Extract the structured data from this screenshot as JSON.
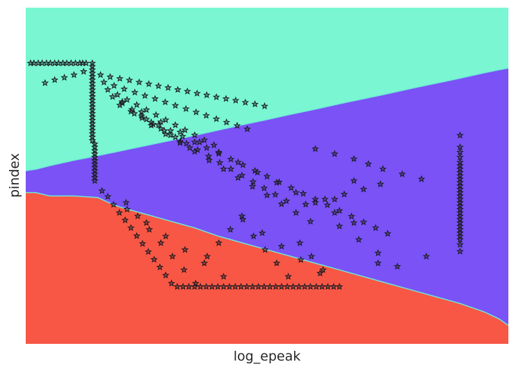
{
  "chart_data": {
    "type": "scatter",
    "title": "",
    "xlabel": "log_epeak",
    "ylabel": "pindex",
    "xlim": [
      0,
      100
    ],
    "ylim": [
      0,
      100
    ],
    "x_ticks_shown": false,
    "y_ticks_shown": false,
    "grid": false,
    "legend": "none",
    "marker": "star",
    "marker_face_color": "#2a2a4a",
    "marker_edge_color": "#1a1a1a",
    "regions": [
      {
        "class_index": 0,
        "color": "#7af7d2",
        "position": "top"
      },
      {
        "class_index": 1,
        "color": "#7a52f6",
        "position": "middle"
      },
      {
        "class_index": 2,
        "color": "#f85746",
        "position": "bottom"
      }
    ],
    "boundary_line_color": "#6ee8d6",
    "boundaries": [
      {
        "between": "top-middle",
        "x": [
          0,
          2,
          5,
          10,
          15,
          20,
          25,
          30,
          35,
          40,
          45,
          50,
          55,
          60,
          65,
          70,
          75,
          80,
          85,
          90,
          95,
          98,
          100
        ],
        "y": [
          51.5,
          51.9,
          53.0,
          54.6,
          56.0,
          57.5,
          59.0,
          60.5,
          62.0,
          63.6,
          65.2,
          66.7,
          68.3,
          69.8,
          71.4,
          72.9,
          74.4,
          76.0,
          77.5,
          79.0,
          80.6,
          81.5,
          82.0
        ]
      },
      {
        "between": "middle-bottom",
        "x": [
          0,
          2,
          5,
          10,
          15,
          18,
          20,
          25,
          30,
          35,
          40,
          45,
          50,
          55,
          60,
          65,
          70,
          75,
          80,
          85,
          90,
          95,
          98,
          100
        ],
        "y": [
          45.0,
          45.0,
          44.0,
          44.0,
          43.5,
          41.5,
          40.5,
          38.5,
          36.5,
          34.5,
          32.0,
          30.0,
          28.0,
          26.0,
          24.0,
          22.0,
          20.0,
          18.0,
          16.0,
          14.0,
          12.0,
          9.5,
          7.5,
          5.5
        ]
      }
    ],
    "series": [
      {
        "points_x": [
          13.8,
          13.8,
          13.8,
          13.8,
          13.8,
          13.8,
          13.8,
          13.8,
          13.8,
          13.8,
          13.8,
          13.8,
          13.8,
          13.8,
          13.8,
          13.8,
          13.8,
          13.8,
          13.8,
          13.8,
          13.8,
          13.8,
          13.8,
          13.8,
          14.3,
          14.3,
          14.3,
          14.3,
          14.3,
          14.3,
          14.3,
          14.3,
          14.3,
          14.3,
          14.3,
          14.3,
          12.5,
          11.8,
          11.2,
          10.3,
          9.4,
          8.5,
          7.7,
          6.8,
          6.0,
          5.1,
          4.3,
          3.4,
          2.6,
          1.7,
          1.0,
          12.0,
          10.0,
          8.0,
          6.0,
          4.0,
          15.5,
          17.5,
          19.5,
          21.5,
          23.5,
          25.5,
          27.5,
          29.5,
          31.5,
          33.5,
          35.5,
          37.5,
          39.5,
          41.5,
          43.5,
          45.5,
          47.5,
          49.5,
          16.2,
          18.3,
          20.4,
          22.6,
          24.7,
          26.8,
          28.9,
          31.0,
          33.2,
          35.3,
          37.4,
          39.5,
          41.6,
          43.8,
          45.9,
          17.0,
          19.0,
          21.0,
          23.0,
          25.0,
          27.0,
          29.0,
          31.0,
          33.0,
          35.0,
          37.0,
          39.0,
          18.0,
          20.0,
          22.0,
          24.0,
          26.0,
          28.0,
          30.0,
          32.0,
          34.0,
          19.5,
          21.8,
          24.1,
          26.4,
          28.7,
          31.0,
          33.3,
          35.6,
          37.9,
          40.2,
          42.5,
          44.8,
          47.1,
          49.4,
          51.7,
          54.0,
          22.5,
          25.0,
          27.5,
          30.0,
          32.5,
          35.0,
          37.5,
          40.0,
          42.5,
          45.0,
          47.5,
          50.0,
          52.5,
          55.0,
          57.5,
          60.0,
          62.5,
          65.0,
          67.5,
          70.0,
          72.5,
          75.0,
          26.0,
          29.0,
          32.0,
          35.0,
          38.0,
          41.0,
          44.0,
          47.0,
          50.0,
          53.0,
          56.0,
          59.0,
          20.0,
          24.0,
          28.0,
          32.0,
          36.0,
          40.0,
          44.0,
          48.0,
          52.0,
          56.0,
          60.0,
          64.0,
          68.0,
          15.8,
          17.0,
          18.2,
          19.4,
          20.6,
          21.8,
          23.0,
          24.2,
          25.4,
          26.6,
          27.8,
          29.0,
          30.2,
          31.4,
          32.6,
          33.8,
          35.0,
          36.2,
          37.4,
          38.6,
          39.8,
          41.0,
          42.2,
          43.4,
          44.6,
          45.8,
          47.0,
          48.2,
          49.4,
          50.6,
          51.8,
          53.0,
          54.2,
          55.4,
          56.6,
          57.8,
          59.0,
          60.2,
          61.4,
          62.6,
          63.8,
          65.0,
          20.8,
          23.2,
          25.6,
          28.0,
          30.4,
          32.8,
          35.2,
          37.6,
          40.0,
          42.4,
          44.8,
          47.2,
          49.6,
          52.0,
          54.4,
          56.8,
          59.2,
          61.6,
          21.0,
          25.0,
          29.0,
          33.0,
          37.0,
          41.0,
          45.0,
          49.0,
          53.0,
          57.0,
          61.0,
          65.0,
          69.0,
          73.0,
          77.0,
          60.0,
          64.0,
          68.0,
          71.0,
          74.0,
          78.0,
          82.0,
          73.5,
          70.0,
          66.0,
          62.0,
          58.0
        ],
        "points_y": [
          83.5,
          82.5,
          81.5,
          80.5,
          79.5,
          78.5,
          77.5,
          76.5,
          75.5,
          74.5,
          73.5,
          72.5,
          71.5,
          70.5,
          69.5,
          68.5,
          67.5,
          66.5,
          65.5,
          64.5,
          63.5,
          62.5,
          61.5,
          60.5,
          59.5,
          58.5,
          57.5,
          56.5,
          55.5,
          54.5,
          53.5,
          52.5,
          51.5,
          50.5,
          49.5,
          48.5,
          83.5,
          83.5,
          83.5,
          83.5,
          83.5,
          83.5,
          83.5,
          83.5,
          83.5,
          83.5,
          83.5,
          83.5,
          83.5,
          83.5,
          83.5,
          81.0,
          80.0,
          79.2,
          78.5,
          77.6,
          80.0,
          79.4,
          78.9,
          78.4,
          77.8,
          77.3,
          76.7,
          76.2,
          75.6,
          75.1,
          74.5,
          74.0,
          73.4,
          72.9,
          72.4,
          71.8,
          71.3,
          70.7,
          77.8,
          76.8,
          75.8,
          74.8,
          73.8,
          72.9,
          71.9,
          70.9,
          69.9,
          68.9,
          67.9,
          66.9,
          65.9,
          64.9,
          63.9,
          75.6,
          74.1,
          72.6,
          71.1,
          69.6,
          68.1,
          66.6,
          65.1,
          63.6,
          62.1,
          60.6,
          59.1,
          73.5,
          71.6,
          69.7,
          67.8,
          65.9,
          64.0,
          62.1,
          60.2,
          58.3,
          71.0,
          69.1,
          67.2,
          65.3,
          63.4,
          61.5,
          59.6,
          57.7,
          55.8,
          53.9,
          52.0,
          50.1,
          48.2,
          46.3,
          44.4,
          42.5,
          68.5,
          66.8,
          65.1,
          63.4,
          61.7,
          60.0,
          58.3,
          56.6,
          54.9,
          53.2,
          51.5,
          49.8,
          48.1,
          46.4,
          44.7,
          43.0,
          41.3,
          39.6,
          37.9,
          36.2,
          34.5,
          32.8,
          65.0,
          62.4,
          59.8,
          57.2,
          54.6,
          52.0,
          49.4,
          46.8,
          44.2,
          41.6,
          39.0,
          36.4,
          72.0,
          69.0,
          66.0,
          63.0,
          60.0,
          57.0,
          54.0,
          51.0,
          48.0,
          45.0,
          42.0,
          39.0,
          36.0,
          45.5,
          43.8,
          41.4,
          39.0,
          36.8,
          34.5,
          32.1,
          29.8,
          27.4,
          25.1,
          22.8,
          20.4,
          18.0,
          17.0,
          17.0,
          17.0,
          17.0,
          17.0,
          17.0,
          17.0,
          17.0,
          17.0,
          17.0,
          17.0,
          17.0,
          17.0,
          17.0,
          17.0,
          17.0,
          17.0,
          17.0,
          17.0,
          17.0,
          17.0,
          17.0,
          17.0,
          17.0,
          17.0,
          17.0,
          17.0,
          17.0,
          17.0,
          42.0,
          38.0,
          34.0,
          30.0,
          26.0,
          22.0,
          18.0,
          26.0,
          30.0,
          34.0,
          38.0,
          32.0,
          28.0,
          24.0,
          20.0,
          30.0,
          26.0,
          22.0,
          40.0,
          36.0,
          32.0,
          28.0,
          24.0,
          20.0,
          37.0,
          33.0,
          29.0,
          25.0,
          21.0,
          35.0,
          31.0,
          27.0,
          23.0,
          58.0,
          56.5,
          55.0,
          53.5,
          52.0,
          50.5,
          49.0,
          47.5,
          46.0,
          44.5,
          43.0,
          41.5
        ]
      },
      {
        "points_x": [
          90.0,
          90.0,
          90.0,
          90.0,
          90.0,
          90.0,
          90.0,
          90.0,
          90.0,
          90.0,
          90.0,
          90.0,
          90.0,
          90.0,
          90.0,
          90.0,
          90.0,
          90.0,
          90.0,
          90.0,
          90.0,
          90.0,
          90.0,
          90.0,
          90.0,
          90.0,
          90.0,
          90.0,
          90.0,
          90.0,
          83.0,
          73.0,
          68.0,
          64.0
        ],
        "points_y": [
          62.0,
          58.5,
          57.0,
          55.5,
          54.0,
          53.0,
          52.0,
          51.0,
          50.0,
          49.0,
          48.0,
          47.0,
          46.0,
          45.0,
          44.0,
          43.0,
          42.0,
          41.0,
          40.0,
          39.0,
          38.0,
          37.0,
          36.0,
          35.0,
          34.0,
          33.0,
          32.0,
          31.0,
          29.5,
          27.5,
          26.0,
          24.0,
          48.5,
          43.0
        ]
      }
    ]
  }
}
